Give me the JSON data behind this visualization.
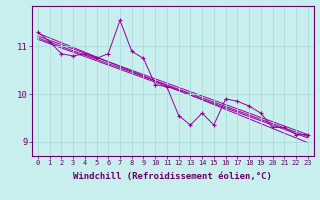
{
  "xlabel": "Windchill (Refroidissement éolien,°C)",
  "background_color": "#c8eeed",
  "line_color": "#990099",
  "grid_color": "#aadddd",
  "axis_color": "#660066",
  "tick_color": "#660066",
  "hours": [
    0,
    1,
    2,
    3,
    4,
    5,
    6,
    7,
    8,
    9,
    10,
    11,
    12,
    13,
    14,
    15,
    16,
    17,
    18,
    19,
    20,
    21,
    22,
    23
  ],
  "windchill": [
    11.3,
    11.1,
    10.85,
    10.8,
    10.85,
    10.75,
    10.85,
    11.55,
    10.9,
    10.75,
    10.2,
    10.15,
    9.55,
    9.35,
    9.6,
    9.35,
    9.9,
    9.85,
    9.75,
    9.6,
    9.3,
    9.3,
    9.15,
    9.15
  ],
  "regression_lines": [
    [
      11.28,
      11.18,
      11.08,
      10.98,
      10.88,
      10.78,
      10.68,
      10.58,
      10.48,
      10.38,
      10.28,
      10.18,
      10.08,
      9.98,
      9.88,
      9.78,
      9.68,
      9.58,
      9.48,
      9.38,
      9.28,
      9.18,
      9.08,
      8.98
    ],
    [
      11.22,
      11.13,
      11.04,
      10.95,
      10.86,
      10.77,
      10.68,
      10.59,
      10.5,
      10.41,
      10.32,
      10.23,
      10.14,
      10.05,
      9.96,
      9.87,
      9.78,
      9.69,
      9.6,
      9.51,
      9.42,
      9.33,
      9.24,
      9.15
    ],
    [
      11.18,
      11.09,
      11.0,
      10.91,
      10.82,
      10.73,
      10.64,
      10.55,
      10.46,
      10.37,
      10.28,
      10.19,
      10.1,
      10.01,
      9.92,
      9.83,
      9.74,
      9.65,
      9.56,
      9.47,
      9.38,
      9.29,
      9.2,
      9.11
    ],
    [
      11.15,
      11.06,
      10.97,
      10.88,
      10.79,
      10.7,
      10.61,
      10.52,
      10.43,
      10.34,
      10.25,
      10.16,
      10.07,
      9.98,
      9.89,
      9.8,
      9.71,
      9.62,
      9.53,
      9.44,
      9.35,
      9.26,
      9.17,
      9.08
    ]
  ],
  "yticks": [
    9,
    10,
    11
  ],
  "ylim": [
    8.7,
    11.85
  ],
  "xlim": [
    -0.5,
    23.5
  ],
  "font_size": 6.5
}
